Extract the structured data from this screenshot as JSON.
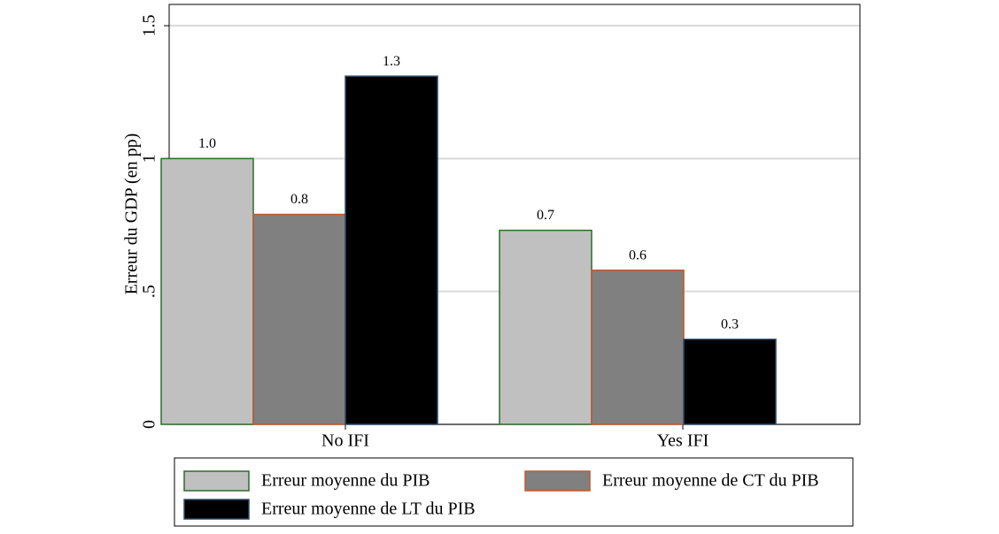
{
  "chart_data": {
    "type": "bar",
    "y_label": "Erreur du GDP (en pp)",
    "categories": [
      "No IFI",
      "Yes IFI"
    ],
    "series": [
      {
        "name": "Erreur moyenne du PIB",
        "color": "#c0c0c0",
        "edge": "#2e6b2a",
        "values": [
          1.0,
          0.73
        ],
        "value_labels": [
          "1.0",
          "0.7"
        ]
      },
      {
        "name": "Erreur moyenne de CT du PIB",
        "color": "#808080",
        "edge": "#c0562e",
        "values": [
          0.79,
          0.58
        ],
        "value_labels": [
          "0.8",
          "0.6"
        ]
      },
      {
        "name": "Erreur moyenne de LT du PIB",
        "color": "#000000",
        "edge": "#2a4a6a",
        "values": [
          1.31,
          0.32
        ],
        "value_labels": [
          "1.3",
          "0.3"
        ]
      }
    ],
    "ylim": [
      0,
      1.58
    ],
    "yticks": [
      0,
      {
        "value": 0.5,
        "label": ".5"
      },
      1,
      1.5
    ],
    "grid": true,
    "legend": "bottom"
  }
}
